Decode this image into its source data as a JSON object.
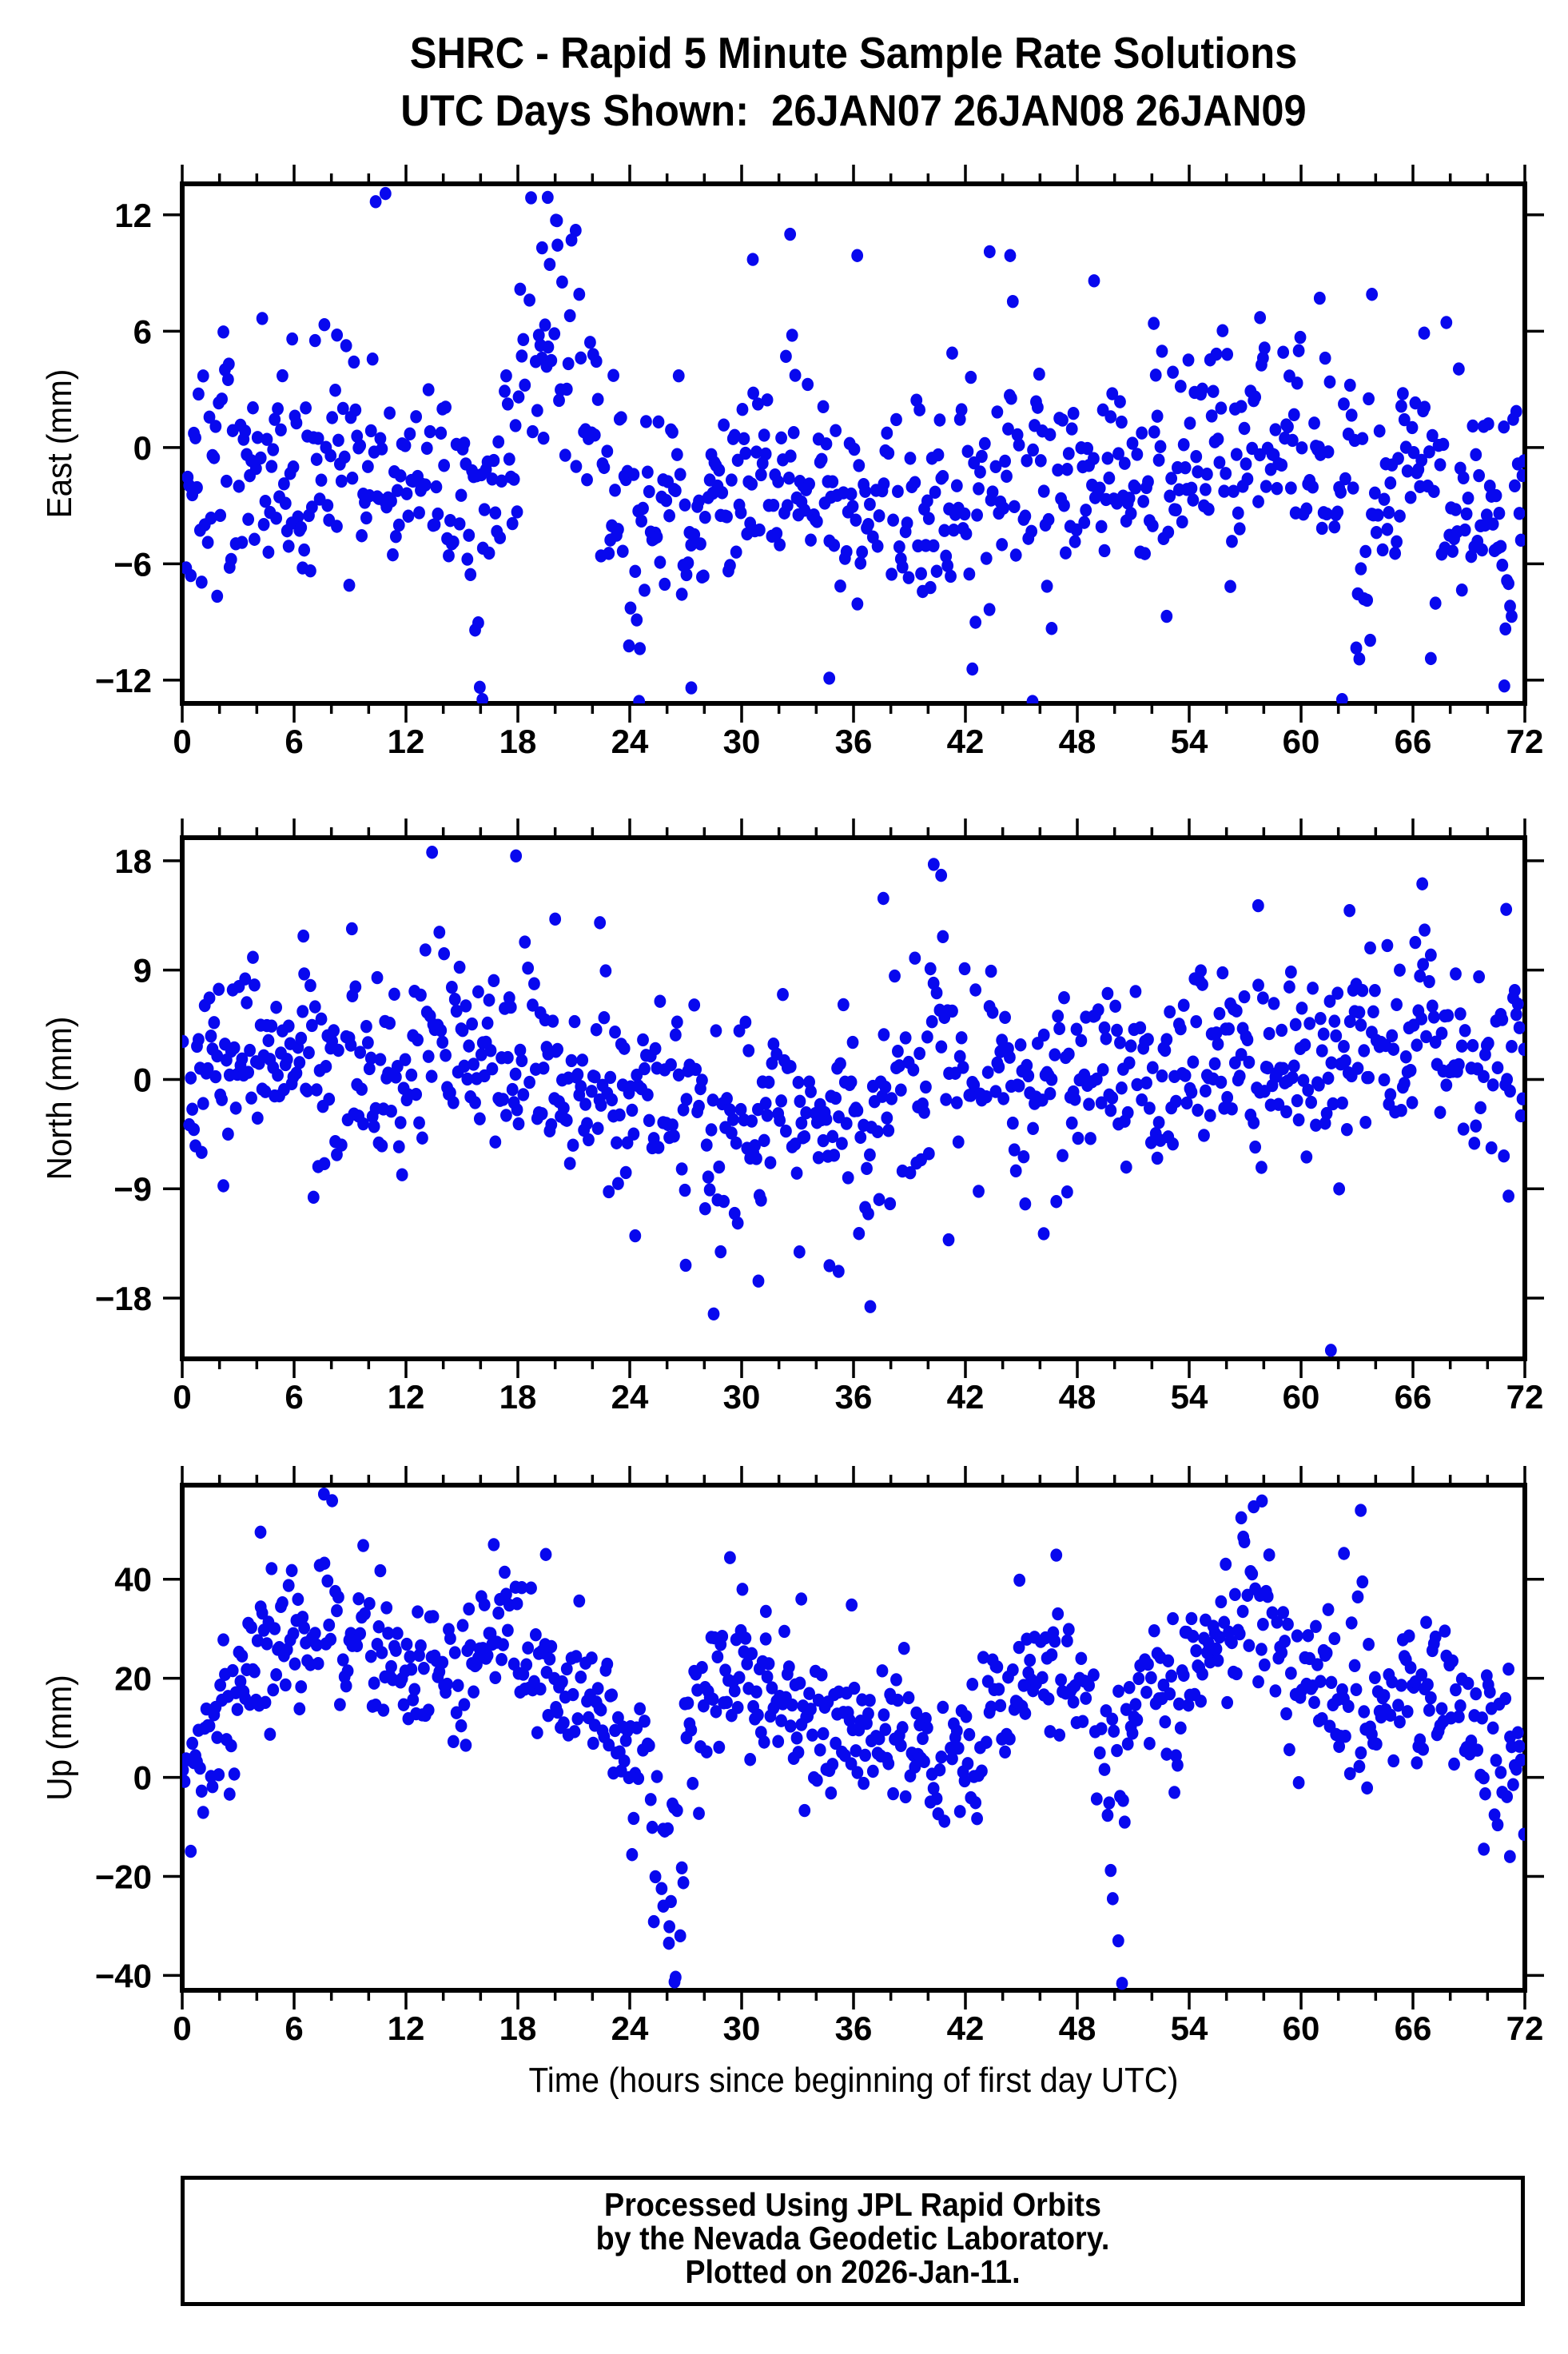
{
  "page": {
    "title": "SHRC - Rapid 5 Minute Sample Rate Solutions",
    "subtitle": "UTC Days Shown:  26JAN07 26JAN08 26JAN09",
    "xaxis_label": "Time (hours since beginning of first day UTC)",
    "footer_lines": [
      "Processed Using JPL Rapid Orbits",
      "by the Nevada Geodetic Laboratory.",
      "Plotted on 2026-Jan-11."
    ],
    "point_color": "#0808ee",
    "frame_color": "#000000",
    "background": "#ffffff"
  },
  "chart_data": [
    {
      "type": "scatter",
      "ylabel": "East (mm)",
      "xlim": [
        0,
        72
      ],
      "ylim": [
        -13.2,
        13.6
      ],
      "yticks": [
        12,
        6,
        0,
        -6,
        -12
      ],
      "xticks": [
        0,
        6,
        12,
        18,
        24,
        30,
        36,
        42,
        48,
        54,
        60,
        66,
        72
      ],
      "xtick_minor_step": 2,
      "grid": false,
      "legend": false,
      "points": {
        "seed": 7,
        "n": 864,
        "dropout": 0.08,
        "noise_std": 2.9,
        "mean_curve": [
          [
            0,
            -1.8
          ],
          [
            3,
            -1.2
          ],
          [
            6,
            -0.8
          ],
          [
            9,
            -0.6
          ],
          [
            12,
            -1.5
          ],
          [
            15,
            -3.2
          ],
          [
            17,
            -2.0
          ],
          [
            18,
            0.5
          ],
          [
            19,
            2.5
          ],
          [
            20,
            2.5
          ],
          [
            21,
            1.5
          ],
          [
            22,
            0.5
          ],
          [
            24,
            -2.5
          ],
          [
            27,
            -2.8
          ],
          [
            30,
            -1.2
          ],
          [
            33,
            -2.0
          ],
          [
            36,
            -3.0
          ],
          [
            39,
            -3.2
          ],
          [
            42,
            -2.6
          ],
          [
            45,
            -2.2
          ],
          [
            48,
            -1.6
          ],
          [
            51,
            -1.2
          ],
          [
            54,
            -0.6
          ],
          [
            56,
            0.6
          ],
          [
            58,
            0.8
          ],
          [
            60,
            -0.4
          ],
          [
            63,
            -1.4
          ],
          [
            66,
            -1.0
          ],
          [
            69,
            -2.2
          ],
          [
            72,
            -1.2
          ]
        ],
        "events": [
          {
            "x": 19.8,
            "width": 1.7,
            "amp": 9.5
          },
          {
            "x": 21.5,
            "width": 0.9,
            "amp": 7
          },
          {
            "x": 10.3,
            "width": 0.35,
            "amp": 11
          },
          {
            "x": 44.6,
            "width": 0.5,
            "amp": 9
          },
          {
            "x": 32.6,
            "width": 0.3,
            "amp": 10
          },
          {
            "x": 15.8,
            "width": 0.5,
            "amp": -9
          },
          {
            "x": 24.3,
            "width": 0.5,
            "amp": -9
          },
          {
            "x": 27.5,
            "width": 0.5,
            "amp": -8
          },
          {
            "x": 46.6,
            "width": 0.4,
            "amp": -10
          },
          {
            "x": 63.3,
            "width": 0.5,
            "amp": -10
          },
          {
            "x": 70.7,
            "width": 0.6,
            "amp": -8
          }
        ],
        "extra": [
          [
            10.9,
            13.1
          ],
          [
            19.6,
            12.9
          ],
          [
            20.1,
            11.7
          ],
          [
            21.1,
            11.2
          ],
          [
            19.3,
            10.3
          ],
          [
            30.6,
            9.7
          ],
          [
            32.6,
            11.0
          ],
          [
            36.2,
            9.9
          ],
          [
            43.3,
            10.1
          ],
          [
            44.4,
            9.9
          ],
          [
            48.9,
            8.6
          ],
          [
            52.1,
            6.4
          ],
          [
            57.8,
            6.7
          ],
          [
            61.0,
            7.7
          ],
          [
            63.8,
            7.9
          ],
          [
            66.6,
            5.9
          ],
          [
            16.1,
            -13.0
          ],
          [
            24.5,
            -13.1
          ],
          [
            27.3,
            -12.4
          ],
          [
            34.7,
            -11.9
          ],
          [
            45.6,
            -13.1
          ],
          [
            62.2,
            -13.0
          ],
          [
            70.9,
            -12.3
          ],
          [
            2.5,
            4.3
          ],
          [
            5.9,
            5.6
          ],
          [
            8.3,
            5.8
          ]
        ]
      }
    },
    {
      "type": "scatter",
      "ylabel": "North (mm)",
      "xlim": [
        0,
        72
      ],
      "ylim": [
        -23,
        19.9
      ],
      "yticks": [
        18,
        9,
        0,
        -9,
        -18
      ],
      "xticks": [
        0,
        6,
        12,
        18,
        24,
        30,
        36,
        42,
        48,
        54,
        60,
        66,
        72
      ],
      "xtick_minor_step": 2,
      "grid": false,
      "legend": false,
      "points": {
        "seed": 13,
        "n": 864,
        "dropout": 0.08,
        "noise_std": 4.0,
        "mean_curve": [
          [
            0,
            -0.3
          ],
          [
            3,
            0.2
          ],
          [
            6,
            0.4
          ],
          [
            9,
            0.8
          ],
          [
            12,
            1.2
          ],
          [
            15,
            1.6
          ],
          [
            18,
            1.2
          ],
          [
            21,
            0.2
          ],
          [
            24,
            -0.8
          ],
          [
            27,
            -2.4
          ],
          [
            30,
            -2.6
          ],
          [
            33,
            -2.8
          ],
          [
            36,
            -3.4
          ],
          [
            38,
            -2.4
          ],
          [
            40,
            -0.6
          ],
          [
            42,
            0.8
          ],
          [
            44,
            0.4
          ],
          [
            46,
            -0.8
          ],
          [
            48,
            0.4
          ],
          [
            50,
            1.0
          ],
          [
            52,
            1.4
          ],
          [
            54,
            1.2
          ],
          [
            56,
            1.8
          ],
          [
            58,
            2.0
          ],
          [
            60,
            1.6
          ],
          [
            63,
            1.2
          ],
          [
            66,
            2.0
          ],
          [
            69,
            1.4
          ],
          [
            72,
            1.6
          ]
        ],
        "events": [
          {
            "x": 28.4,
            "width": 0.6,
            "amp": -12
          },
          {
            "x": 36.8,
            "width": 0.6,
            "amp": -11
          },
          {
            "x": 13.4,
            "width": 0.4,
            "amp": 12
          },
          {
            "x": 40.4,
            "width": 0.5,
            "amp": 12
          },
          {
            "x": 66.6,
            "width": 0.5,
            "amp": 10
          }
        ],
        "extra": [
          [
            13.4,
            18.7
          ],
          [
            17.9,
            18.4
          ],
          [
            20.0,
            13.2
          ],
          [
            6.5,
            11.8
          ],
          [
            9.1,
            12.4
          ],
          [
            22.4,
            12.9
          ],
          [
            37.6,
            14.9
          ],
          [
            40.3,
            17.7
          ],
          [
            40.7,
            16.8
          ],
          [
            57.7,
            14.3
          ],
          [
            62.6,
            13.9
          ],
          [
            66.5,
            16.1
          ],
          [
            71.0,
            14.0
          ],
          [
            27.0,
            -15.3
          ],
          [
            28.5,
            -19.3
          ],
          [
            30.9,
            -16.6
          ],
          [
            33.1,
            -14.2
          ],
          [
            35.2,
            -15.8
          ],
          [
            36.9,
            -18.7
          ],
          [
            41.1,
            -13.2
          ],
          [
            46.2,
            -12.7
          ],
          [
            61.6,
            -22.3
          ]
        ]
      }
    },
    {
      "type": "scatter",
      "ylabel": "Up (mm)",
      "xlim": [
        0,
        72
      ],
      "ylim": [
        -43,
        59
      ],
      "yticks": [
        40,
        20,
        0,
        -20,
        -40
      ],
      "xticks": [
        0,
        6,
        12,
        18,
        24,
        30,
        36,
        42,
        48,
        54,
        60,
        66,
        72
      ],
      "xtick_minor_step": 2,
      "grid": false,
      "legend": false,
      "points": {
        "seed": 29,
        "n": 864,
        "dropout": 0.08,
        "noise_std": 7.5,
        "mean_curve": [
          [
            0,
            3
          ],
          [
            1,
            6
          ],
          [
            2,
            12
          ],
          [
            3,
            18
          ],
          [
            4,
            24
          ],
          [
            6,
            26
          ],
          [
            8,
            28
          ],
          [
            10,
            24
          ],
          [
            12,
            23
          ],
          [
            14,
            24
          ],
          [
            16,
            27
          ],
          [
            17,
            30
          ],
          [
            18,
            29
          ],
          [
            19,
            24
          ],
          [
            20,
            18
          ],
          [
            21,
            16
          ],
          [
            22,
            14
          ],
          [
            23,
            10
          ],
          [
            24,
            6
          ],
          [
            25,
            2
          ],
          [
            26,
            0
          ],
          [
            27,
            8
          ],
          [
            28,
            16
          ],
          [
            29,
            21
          ],
          [
            30,
            19
          ],
          [
            31,
            17
          ],
          [
            32,
            15
          ],
          [
            33,
            13
          ],
          [
            34,
            11
          ],
          [
            35,
            9
          ],
          [
            36,
            8
          ],
          [
            37,
            9
          ],
          [
            38,
            10
          ],
          [
            39,
            9
          ],
          [
            40,
            7
          ],
          [
            41,
            6
          ],
          [
            42,
            7
          ],
          [
            43,
            10
          ],
          [
            44,
            14
          ],
          [
            45,
            18
          ],
          [
            46,
            22
          ],
          [
            47,
            26
          ],
          [
            48,
            24
          ],
          [
            49,
            14
          ],
          [
            50,
            4
          ],
          [
            51,
            12
          ],
          [
            52,
            17
          ],
          [
            53,
            19
          ],
          [
            54,
            21
          ],
          [
            55,
            24
          ],
          [
            56,
            28
          ],
          [
            57,
            30
          ],
          [
            58,
            27
          ],
          [
            59,
            24
          ],
          [
            60,
            21
          ],
          [
            61,
            18
          ],
          [
            62,
            16
          ],
          [
            63,
            16
          ],
          [
            64,
            15
          ],
          [
            65,
            16
          ],
          [
            66,
            17
          ],
          [
            67,
            15
          ],
          [
            68,
            12
          ],
          [
            69,
            9
          ],
          [
            70,
            6
          ],
          [
            71,
            3
          ],
          [
            72,
            1
          ]
        ],
        "events": [
          {
            "x": 26.0,
            "width": 0.9,
            "amp": -42
          },
          {
            "x": 50.1,
            "width": 0.8,
            "amp": -45
          },
          {
            "x": 7.8,
            "width": 0.6,
            "amp": 22
          },
          {
            "x": 57.5,
            "width": 0.8,
            "amp": 20
          },
          {
            "x": 63.0,
            "width": 0.5,
            "amp": 25
          }
        ],
        "extra": [
          [
            4.2,
            49.5
          ],
          [
            7.6,
            57.2
          ],
          [
            19.5,
            45.0
          ],
          [
            31.3,
            33.5
          ],
          [
            33.2,
            36.0
          ],
          [
            35.9,
            34.8
          ],
          [
            44.9,
            39.8
          ],
          [
            56.9,
            48.5
          ],
          [
            57.9,
            55.8
          ],
          [
            62.3,
            45.2
          ],
          [
            63.2,
            53.9
          ],
          [
            25.8,
            -26.0
          ],
          [
            26.1,
            -33.5
          ],
          [
            26.4,
            -41.3
          ],
          [
            49.9,
            -24.5
          ],
          [
            50.2,
            -33.0
          ],
          [
            50.4,
            -41.6
          ],
          [
            69.8,
            -14.5
          ],
          [
            71.2,
            -16.0
          ]
        ]
      }
    }
  ]
}
